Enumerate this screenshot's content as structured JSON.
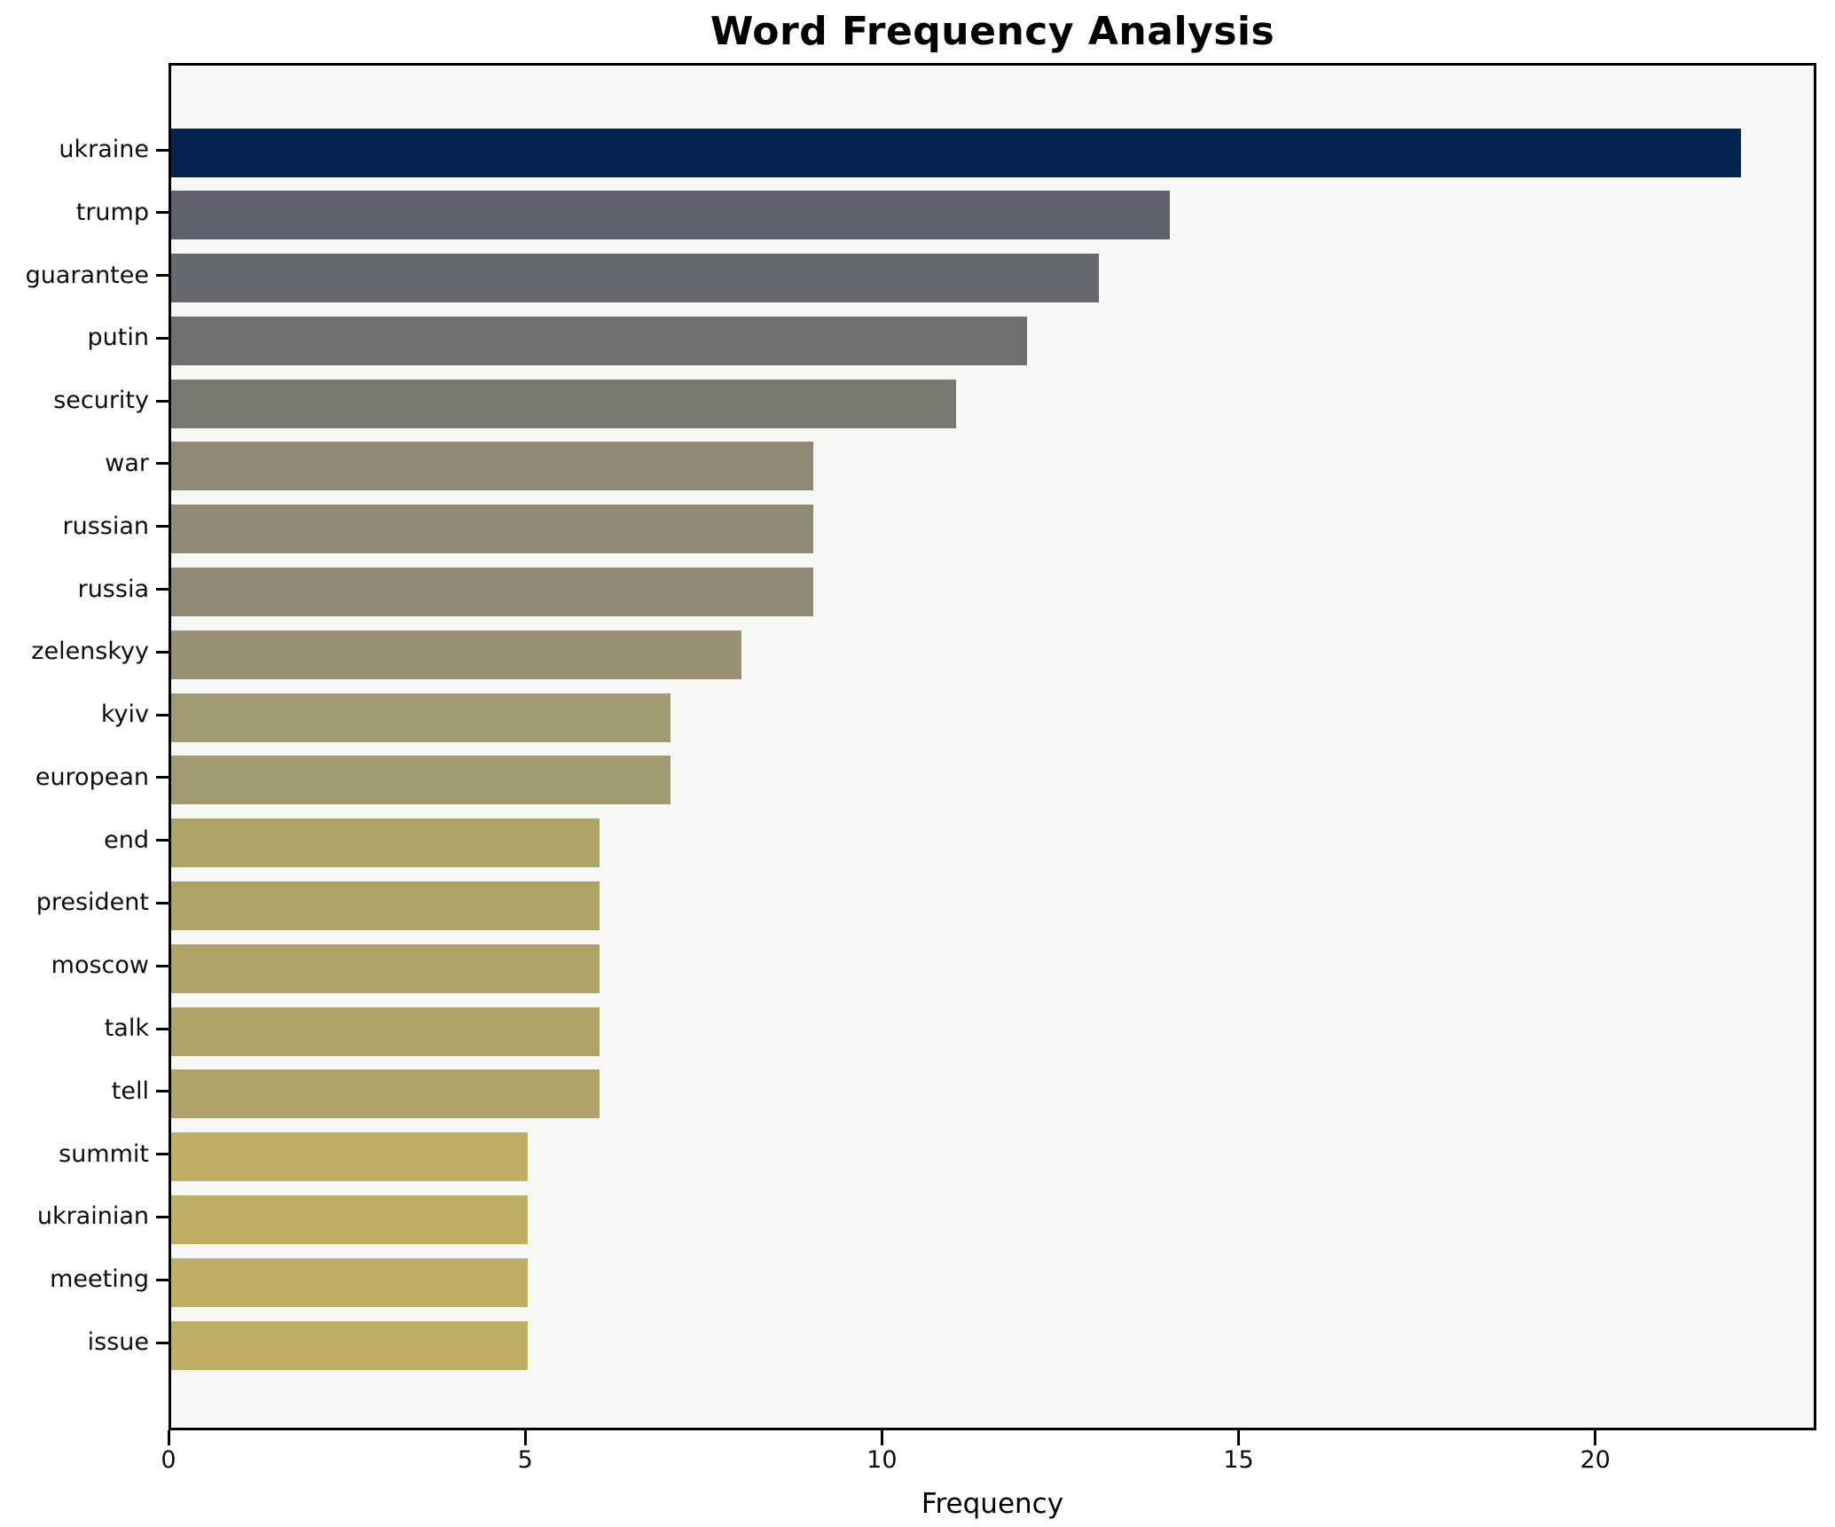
{
  "title": "Word Frequency Analysis",
  "chart_data": {
    "type": "bar",
    "orientation": "horizontal",
    "title": "Word Frequency Analysis",
    "xlabel": "Frequency",
    "ylabel": "",
    "categories": [
      "ukraine",
      "trump",
      "guarantee",
      "putin",
      "security",
      "war",
      "russian",
      "russia",
      "zelenskyy",
      "kyiv",
      "european",
      "end",
      "president",
      "moscow",
      "talk",
      "tell",
      "summit",
      "ukrainian",
      "meeting",
      "issue"
    ],
    "values": [
      22,
      14,
      13,
      12,
      11,
      9,
      9,
      9,
      8,
      7,
      7,
      6,
      6,
      6,
      6,
      6,
      5,
      5,
      5,
      5
    ],
    "bar_colors": [
      "#01234e",
      "#5f626e",
      "#666970",
      "#6e7072",
      "#787a72",
      "#8e8a75",
      "#8e8a75",
      "#8e8a75",
      "#989174",
      "#a19a70",
      "#a19a70",
      "#ada366",
      "#ada366",
      "#ada366",
      "#ada366",
      "#ada366",
      "#bcae62",
      "#bcae62",
      "#bcae62",
      "#bcae62"
    ],
    "xlim": [
      0,
      23.1
    ],
    "xticks": [
      0,
      5,
      10,
      15,
      20
    ],
    "grid": false,
    "legend": "none",
    "plot_background": "#f7f7f5",
    "figure_background": "#ffffff",
    "spine_color": "#000000",
    "text_color": "#000000"
  }
}
